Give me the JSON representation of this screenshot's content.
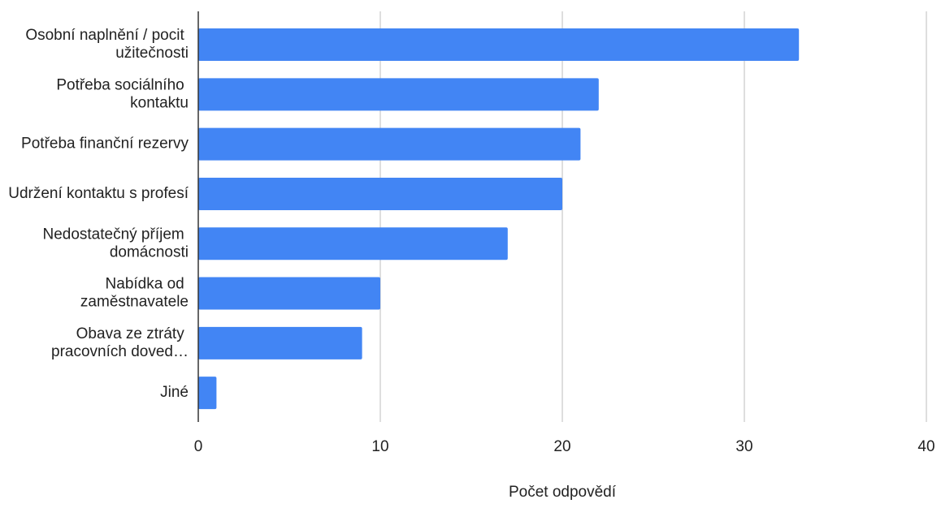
{
  "chart_data": {
    "type": "barh",
    "x_label": "Počet odpovědí",
    "categories": [
      "Osobní naplnění / pocit užitečnosti",
      "Potřeba sociálního kontaktu",
      "Potřeba finanční rezervy",
      "Udržení kontaktu s profesí",
      "Nedostatečný příjem domácnosti",
      "Nabídka od zaměstnavatele",
      "Obava ze ztráty pracovních doved…",
      "Jiné"
    ],
    "values": [
      33,
      22,
      21,
      20,
      17,
      10,
      9,
      1
    ],
    "color": "#4285f4",
    "xlim": [
      0,
      40
    ],
    "xticks": [
      0,
      10,
      20,
      30,
      40
    ],
    "grid": true
  }
}
